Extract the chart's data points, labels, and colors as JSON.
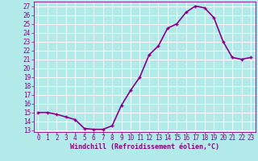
{
  "x": [
    0,
    1,
    2,
    3,
    4,
    5,
    6,
    7,
    8,
    9,
    10,
    11,
    12,
    13,
    14,
    15,
    16,
    17,
    18,
    19,
    20,
    21,
    22,
    23
  ],
  "y": [
    15,
    15,
    14.8,
    14.5,
    14.2,
    13.2,
    13.1,
    13.1,
    13.5,
    15.8,
    17.5,
    19.0,
    21.5,
    22.5,
    24.5,
    25.0,
    26.3,
    27.0,
    26.8,
    25.7,
    23.0,
    21.2,
    21.0,
    21.2
  ],
  "line_color": "#880088",
  "marker": "+",
  "marker_size": 3,
  "xlim": [
    -0.5,
    23.5
  ],
  "ylim": [
    12.8,
    27.5
  ],
  "yticks": [
    13,
    14,
    15,
    16,
    17,
    18,
    19,
    20,
    21,
    22,
    23,
    24,
    25,
    26,
    27
  ],
  "xticks": [
    0,
    1,
    2,
    3,
    4,
    5,
    6,
    7,
    8,
    9,
    10,
    11,
    12,
    13,
    14,
    15,
    16,
    17,
    18,
    19,
    20,
    21,
    22,
    23
  ],
  "xlabel": "Windchill (Refroidissement éolien,°C)",
  "background_color": "#b2eaea",
  "grid_color": "#ffffff",
  "axis_color": "#880088",
  "tick_color": "#880088",
  "label_color": "#880088",
  "font_size_label": 6,
  "font_size_tick": 5.5,
  "line_width": 1.2
}
